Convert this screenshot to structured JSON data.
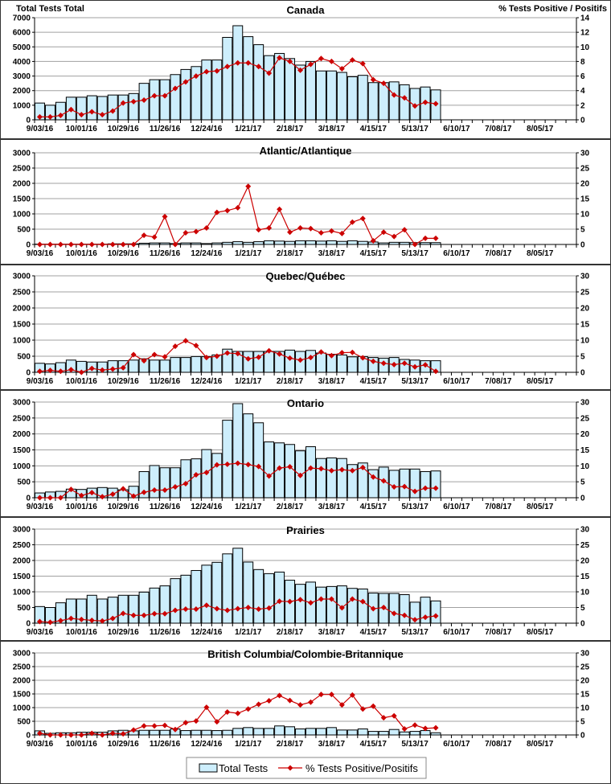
{
  "header": {
    "left_axis_title": "Total Tests Total",
    "right_axis_title": "% Tests Positive / Positifs"
  },
  "legend": {
    "bars_label": "Total Tests",
    "line_label": "% Tests Positive/Positifs"
  },
  "colors": {
    "bar_fill": "#cdeefc",
    "bar_stroke": "#000000",
    "line": "#cc0000",
    "grid": "#a0a0a0"
  },
  "x_tick_labels": [
    "9/03/16",
    "10/01/16",
    "10/29/16",
    "11/26/16",
    "12/24/16",
    "1/21/17",
    "2/18/17",
    "3/18/17",
    "4/15/17",
    "5/13/17",
    "6/10/17",
    "7/08/17",
    "8/05/17"
  ],
  "weeks_in_season": 52,
  "chart_data": [
    {
      "type": "bar+line",
      "title": "Canada",
      "ylabel": "Total Tests Total",
      "y2label": "% Tests Positive / Positifs",
      "ylim": [
        0,
        7000
      ],
      "y_ticks": [
        0,
        1000,
        2000,
        3000,
        4000,
        5000,
        6000,
        7000
      ],
      "y2lim": [
        0,
        14
      ],
      "y2_ticks": [
        0,
        2,
        4,
        6,
        8,
        10,
        12,
        14
      ],
      "series": [
        {
          "name": "Total Tests",
          "kind": "bar",
          "values": [
            1150,
            1000,
            1200,
            1550,
            1550,
            1650,
            1600,
            1700,
            1700,
            1800,
            2500,
            2750,
            2750,
            3100,
            3450,
            3650,
            4100,
            4100,
            5650,
            6450,
            5700,
            5150,
            4400,
            4550,
            4200,
            3750,
            4000,
            3350,
            3350,
            3250,
            2950,
            3050,
            2550,
            2550,
            2600,
            2400,
            2150,
            2250,
            2050
          ]
        },
        {
          "name": "% Tests Positive/Positifs",
          "kind": "line",
          "values": [
            0.4,
            0.4,
            0.6,
            1.4,
            0.7,
            1.1,
            0.7,
            1.2,
            2.3,
            2.5,
            2.7,
            3.3,
            3.3,
            4.3,
            5.2,
            6.0,
            6.6,
            6.7,
            7.3,
            7.8,
            7.8,
            7.3,
            6.4,
            8.5,
            8.0,
            6.8,
            7.6,
            8.4,
            8.0,
            7.0,
            8.2,
            7.7,
            5.5,
            5.0,
            3.4,
            3.0,
            1.9,
            2.4,
            2.2
          ]
        }
      ]
    },
    {
      "type": "bar+line",
      "title": "Atlantic/Atlantique",
      "ylim": [
        0,
        3000
      ],
      "y_ticks": [
        0,
        500,
        1000,
        1500,
        2000,
        2500,
        3000
      ],
      "y2lim": [
        0,
        30
      ],
      "y2_ticks": [
        0,
        5,
        10,
        15,
        20,
        25,
        30
      ],
      "series": [
        {
          "name": "Total Tests",
          "kind": "bar",
          "values": [
            10,
            10,
            10,
            10,
            10,
            10,
            10,
            20,
            20,
            20,
            40,
            50,
            50,
            30,
            50,
            50,
            30,
            50,
            70,
            90,
            70,
            90,
            120,
            110,
            100,
            120,
            120,
            110,
            120,
            100,
            120,
            100,
            80,
            50,
            70,
            70,
            60,
            60,
            60
          ]
        },
        {
          "name": "% Tests Positive/Positifs",
          "kind": "line",
          "values": [
            0,
            0,
            0,
            0,
            0,
            0,
            0,
            0,
            0,
            0,
            3.0,
            2.4,
            9.1,
            0,
            3.8,
            4.2,
            5.4,
            10.5,
            11.1,
            12.0,
            19.0,
            4.8,
            5.4,
            11.5,
            4.0,
            5.4,
            5.2,
            3.8,
            4.4,
            3.6,
            7.3,
            8.5,
            1.2,
            4.0,
            2.6,
            4.8,
            0,
            2.0,
            2.0
          ]
        }
      ]
    },
    {
      "type": "bar+line",
      "title": "Quebec/Québec",
      "ylim": [
        0,
        3000
      ],
      "y_ticks": [
        0,
        500,
        1000,
        1500,
        2000,
        2500,
        3000
      ],
      "y2lim": [
        0,
        30
      ],
      "y2_ticks": [
        0,
        5,
        10,
        15,
        20,
        25,
        30
      ],
      "series": [
        {
          "name": "Total Tests",
          "kind": "bar",
          "values": [
            280,
            260,
            300,
            380,
            340,
            320,
            320,
            360,
            360,
            380,
            420,
            380,
            380,
            460,
            460,
            490,
            490,
            540,
            720,
            650,
            650,
            650,
            650,
            650,
            690,
            650,
            680,
            600,
            560,
            540,
            480,
            490,
            460,
            440,
            460,
            400,
            380,
            360,
            360
          ]
        },
        {
          "name": "% Tests Positive/Positifs",
          "kind": "line",
          "values": [
            0.3,
            0.6,
            0.3,
            0.8,
            0,
            1.2,
            0.7,
            1.0,
            1.4,
            5.5,
            3.6,
            5.5,
            4.8,
            8.1,
            9.8,
            8.3,
            4.6,
            5.0,
            6.0,
            5.8,
            4.2,
            4.7,
            6.7,
            5.7,
            4.4,
            3.8,
            4.6,
            6.3,
            5.2,
            6.1,
            6.2,
            4.5,
            3.4,
            2.8,
            2.4,
            2.8,
            1.7,
            2.3,
            0.3
          ]
        }
      ]
    },
    {
      "type": "bar+line",
      "title": "Ontario",
      "ylim": [
        0,
        3000
      ],
      "y_ticks": [
        0,
        500,
        1000,
        1500,
        2000,
        2500,
        3000
      ],
      "y2lim": [
        0,
        30
      ],
      "y2_ticks": [
        0,
        5,
        10,
        15,
        20,
        25,
        30
      ],
      "series": [
        {
          "name": "Total Tests",
          "kind": "bar",
          "values": [
            150,
            180,
            200,
            270,
            260,
            300,
            320,
            300,
            250,
            360,
            820,
            1010,
            940,
            940,
            1190,
            1220,
            1510,
            1390,
            2430,
            2950,
            2630,
            2350,
            1750,
            1720,
            1670,
            1470,
            1600,
            1230,
            1250,
            1230,
            1040,
            1090,
            880,
            960,
            860,
            900,
            900,
            820,
            840
          ]
        },
        {
          "name": "% Tests Positive/Positifs",
          "kind": "line",
          "values": [
            0,
            0,
            0,
            2.6,
            0.7,
            1.6,
            0.3,
            1.1,
            2.8,
            0.5,
            1.7,
            2.4,
            2.4,
            3.4,
            4.4,
            7.2,
            7.9,
            10.3,
            10.5,
            10.8,
            10.4,
            9.8,
            6.8,
            9.3,
            9.7,
            7.0,
            9.3,
            9.1,
            8.5,
            8.8,
            8.5,
            9.5,
            6.5,
            5.3,
            3.4,
            3.5,
            2.0,
            3.0,
            3.0
          ]
        }
      ]
    },
    {
      "type": "bar+line",
      "title": "Prairies",
      "ylim": [
        0,
        3000
      ],
      "y_ticks": [
        0,
        500,
        1000,
        1500,
        2000,
        2500,
        3000
      ],
      "y2lim": [
        0,
        30
      ],
      "y2_ticks": [
        0,
        5,
        10,
        15,
        20,
        25,
        30
      ],
      "series": [
        {
          "name": "Total Tests",
          "kind": "bar",
          "values": [
            530,
            500,
            650,
            770,
            770,
            890,
            770,
            830,
            890,
            890,
            990,
            1120,
            1190,
            1420,
            1530,
            1680,
            1850,
            1940,
            2210,
            2390,
            1950,
            1710,
            1580,
            1630,
            1370,
            1240,
            1310,
            1150,
            1170,
            1190,
            1110,
            1090,
            960,
            950,
            950,
            910,
            670,
            830,
            710
          ]
        },
        {
          "name": "% Tests Positive/Positifs",
          "kind": "line",
          "values": [
            0.5,
            0.3,
            0.8,
            1.5,
            1.2,
            0.9,
            0.7,
            1.5,
            3.1,
            2.5,
            2.5,
            3.0,
            3.0,
            4.1,
            4.5,
            4.5,
            5.7,
            4.6,
            4.1,
            4.6,
            5.0,
            4.5,
            4.8,
            7.0,
            6.9,
            7.5,
            6.5,
            7.7,
            7.7,
            4.9,
            7.7,
            6.9,
            4.6,
            5.0,
            3.1,
            2.5,
            1.1,
            1.9,
            2.3
          ]
        }
      ]
    },
    {
      "type": "bar+line",
      "title": "British Columbia/Colombie-Britannique",
      "ylim": [
        0,
        3000
      ],
      "y_ticks": [
        0,
        500,
        1000,
        1500,
        2000,
        2500,
        3000
      ],
      "y2lim": [
        0,
        30
      ],
      "y2_ticks": [
        0,
        5,
        10,
        15,
        20,
        25,
        30
      ],
      "series": [
        {
          "name": "Total Tests",
          "kind": "bar",
          "values": [
            150,
            60,
            80,
            80,
            100,
            100,
            100,
            150,
            170,
            150,
            170,
            170,
            170,
            220,
            160,
            170,
            170,
            160,
            170,
            240,
            270,
            240,
            240,
            330,
            300,
            220,
            240,
            240,
            270,
            180,
            180,
            220,
            130,
            130,
            200,
            110,
            130,
            160,
            80
          ]
        },
        {
          "name": "% Tests Positive/Positifs",
          "kind": "line",
          "values": [
            0.6,
            0,
            0,
            0,
            0,
            0.6,
            0,
            0.6,
            0.4,
            1.8,
            3.3,
            3.3,
            3.5,
            2.0,
            4.5,
            5.1,
            10.1,
            4.8,
            8.4,
            7.9,
            9.5,
            11.2,
            12.5,
            14.4,
            12.6,
            11.0,
            12.0,
            14.8,
            14.8,
            11.0,
            14.6,
            9.5,
            10.5,
            6.3,
            7.0,
            2.2,
            3.6,
            2.4,
            2.6
          ]
        }
      ]
    }
  ]
}
